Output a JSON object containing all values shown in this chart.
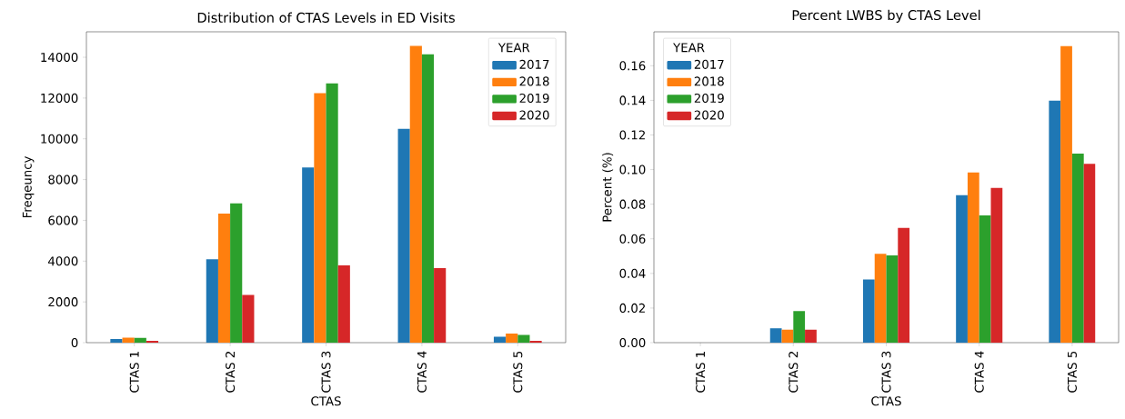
{
  "chart_data": [
    {
      "type": "bar",
      "title": "Distribution of CTAS Levels in ED Visits",
      "xlabel": "CTAS",
      "ylabel": "Freqeuncy",
      "legend_title": "YEAR",
      "legend": "top right",
      "categories": [
        "CTAS 1",
        "CTAS 2",
        "CTAS 3",
        "CTAS 4",
        "CTAS 5"
      ],
      "ylim": [
        0,
        15250
      ],
      "yticks": [
        0,
        2000,
        4000,
        6000,
        8000,
        10000,
        12000,
        14000
      ],
      "series": [
        {
          "name": "2017",
          "color": "#1f77b4",
          "values": [
            180,
            4090,
            8600,
            10490,
            290
          ]
        },
        {
          "name": "2018",
          "color": "#ff7f0e",
          "values": [
            250,
            6330,
            12240,
            14560,
            450
          ]
        },
        {
          "name": "2019",
          "color": "#2ca02c",
          "values": [
            230,
            6830,
            12720,
            14150,
            380
          ]
        },
        {
          "name": "2020",
          "color": "#d62728",
          "values": [
            90,
            2340,
            3800,
            3660,
            90
          ]
        }
      ]
    },
    {
      "type": "bar",
      "title": "Percent LWBS by CTAS Level",
      "xlabel": "CTAS",
      "ylabel": "Percent (%)",
      "legend_title": "YEAR",
      "legend": "top left",
      "categories": [
        "CTAS 1",
        "CTAS 2",
        "CTAS 3",
        "CTAS 4",
        "CTAS 5"
      ],
      "ylim": [
        0,
        0.1796
      ],
      "yticks": [
        {
          "value": 0,
          "label": "0.00"
        },
        {
          "value": 0.02,
          "label": "0.02"
        },
        {
          "value": 0.04,
          "label": "0.04"
        },
        {
          "value": 0.06,
          "label": "0.06"
        },
        {
          "value": 0.08,
          "label": "0.08"
        },
        {
          "value": 0.1,
          "label": "0.10"
        },
        {
          "value": 0.12,
          "label": "0.12"
        },
        {
          "value": 0.14,
          "label": "0.14"
        },
        {
          "value": 0.16,
          "label": "0.16"
        }
      ],
      "series": [
        {
          "name": "2017",
          "color": "#1f77b4",
          "values": [
            0,
            0.0083,
            0.0365,
            0.0852,
            0.1398
          ]
        },
        {
          "name": "2018",
          "color": "#ff7f0e",
          "values": [
            0,
            0.0075,
            0.0513,
            0.0983,
            0.1713
          ]
        },
        {
          "name": "2019",
          "color": "#2ca02c",
          "values": [
            0,
            0.0183,
            0.0504,
            0.0735,
            0.1092
          ]
        },
        {
          "name": "2020",
          "color": "#d62728",
          "values": [
            0,
            0.0075,
            0.0663,
            0.0894,
            0.1033
          ]
        }
      ]
    }
  ]
}
